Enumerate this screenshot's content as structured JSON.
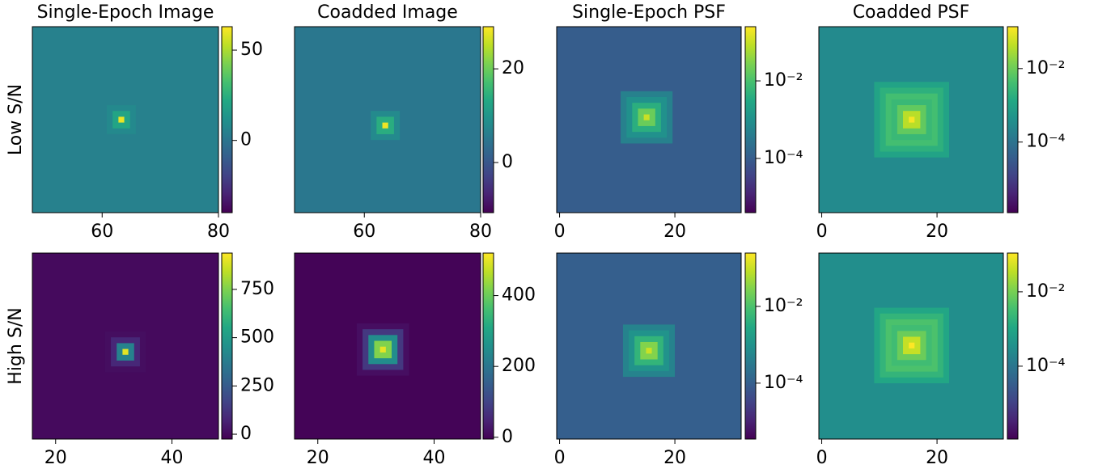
{
  "chart_data": [
    {
      "type": "heatmap",
      "title": "Single-Epoch Image",
      "ylabel": "Low S/N",
      "xlim": [
        48,
        80
      ],
      "ylim": [
        48,
        80
      ],
      "xticks": [
        60,
        80
      ],
      "clim": [
        -40,
        63
      ],
      "cticks": [
        0,
        50
      ],
      "log": false,
      "background": 5,
      "center": [
        63.3,
        64
      ],
      "profile": [
        60,
        20,
        8
      ]
    },
    {
      "type": "heatmap",
      "title": "Coadded Image",
      "xlim": [
        48,
        80
      ],
      "ylim": [
        48,
        80
      ],
      "xticks": [
        60,
        80
      ],
      "clim": [
        -10.7,
        29
      ],
      "cticks": [
        0,
        20
      ],
      "log": false,
      "background": 5,
      "center": [
        63.6,
        65
      ],
      "profile": [
        28,
        14,
        8
      ]
    },
    {
      "type": "heatmap",
      "title": "Single-Epoch PSF",
      "xlim": [
        -0.5,
        31.5
      ],
      "ylim": [
        -0.5,
        31.5
      ],
      "xticks": [
        0,
        20
      ],
      "clim": [
        4e-06,
        0.25
      ],
      "cticks": [
        {
          "value": 0.0001,
          "label": "10⁻⁴"
        },
        {
          "value": 0.01,
          "label": "10⁻²"
        }
      ],
      "log": true,
      "background": 0.0001,
      "center": [
        15.1,
        15.1
      ],
      "profile": [
        0.1,
        0.02,
        0.004,
        0.001,
        0.0005
      ]
    },
    {
      "type": "heatmap",
      "title": "Coadded PSF",
      "xlim": [
        -0.5,
        31.5
      ],
      "ylim": [
        -0.5,
        31.5
      ],
      "xticks": [
        0,
        20
      ],
      "clim": [
        1.2e-06,
        0.138
      ],
      "cticks": [
        {
          "value": 0.0001,
          "label": "10⁻⁴"
        },
        {
          "value": 0.01,
          "label": "10⁻²"
        }
      ],
      "log": true,
      "background": 0.0003,
      "center": [
        15.6,
        15.5
      ],
      "profile": [
        0.12,
        0.04,
        0.008,
        0.003,
        0.004,
        0.002,
        0.001
      ]
    },
    {
      "type": "heatmap",
      "ylabel": "High S/N",
      "xlim": [
        16,
        48
      ],
      "ylim": [
        16,
        48
      ],
      "xticks": [
        20,
        40
      ],
      "clim": [
        -25,
        938
      ],
      "cticks": [
        0,
        250,
        500,
        750
      ],
      "log": false,
      "background": 0,
      "center": [
        32,
        33
      ],
      "profile": [
        900,
        400,
        80,
        10
      ]
    },
    {
      "type": "heatmap",
      "xlim": [
        16,
        48
      ],
      "ylim": [
        16,
        48
      ],
      "xticks": [
        20,
        40
      ],
      "clim": [
        -5,
        520
      ],
      "cticks": [
        0,
        200,
        400
      ],
      "log": false,
      "background": 0,
      "center": [
        31.2,
        32.6
      ],
      "profile": [
        500,
        420,
        250,
        80,
        15
      ]
    },
    {
      "type": "heatmap",
      "xlim": [
        -0.5,
        31.5
      ],
      "ylim": [
        -0.5,
        31.5
      ],
      "xticks": [
        0,
        20
      ],
      "clim": [
        3.5e-06,
        0.245
      ],
      "cticks": [
        {
          "value": 0.0001,
          "label": "10⁻⁴"
        },
        {
          "value": 0.01,
          "label": "10⁻²"
        }
      ],
      "log": true,
      "background": 0.0001,
      "center": [
        15.5,
        16.3
      ],
      "profile": [
        0.1,
        0.03,
        0.005,
        0.001,
        0.0005
      ]
    },
    {
      "type": "heatmap",
      "xlim": [
        -0.5,
        31.5
      ],
      "ylim": [
        -0.5,
        31.5
      ],
      "xticks": [
        0,
        20
      ],
      "clim": [
        1.1e-06,
        0.11
      ],
      "cticks": [
        {
          "value": 0.0001,
          "label": "10⁻⁴"
        },
        {
          "value": 0.01,
          "label": "10⁻²"
        }
      ],
      "log": true,
      "background": 0.0003,
      "center": [
        15.6,
        15.4
      ],
      "profile": [
        0.12,
        0.04,
        0.008,
        0.003,
        0.004,
        0.002,
        0.001
      ]
    }
  ]
}
